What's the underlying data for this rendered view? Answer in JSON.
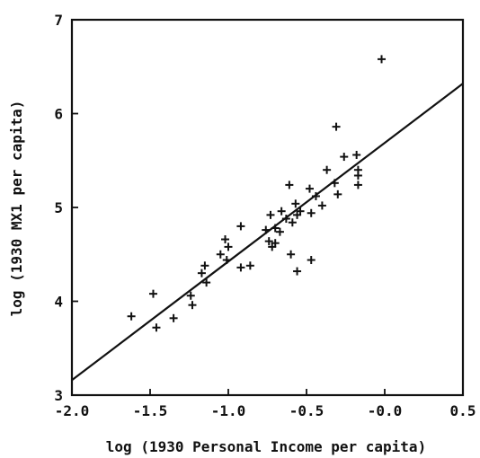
{
  "chart_data": {
    "type": "scatter",
    "xlabel": "log (1930 Personal Income per capita)",
    "ylabel": "log (1930 MX1 per capita)",
    "xlim": [
      -2.0,
      0.5
    ],
    "ylim": [
      3,
      7
    ],
    "xticks": [
      -2.0,
      -1.5,
      -1.0,
      -0.5,
      0.0,
      0.5
    ],
    "xtick_labels": [
      "-2.0",
      "-1.5",
      "-1.0",
      "-0.5",
      "-0.0",
      "0.5"
    ],
    "yticks": [
      3,
      4,
      5,
      6,
      7
    ],
    "ytick_labels": [
      "3",
      "4",
      "5",
      "6",
      "7"
    ],
    "grid": false,
    "marker": "plus",
    "fit_line": {
      "x": [
        -2.0,
        0.5
      ],
      "y": [
        3.16,
        6.32
      ]
    },
    "points": [
      {
        "x": -1.62,
        "y": 3.84
      },
      {
        "x": -1.48,
        "y": 4.08
      },
      {
        "x": -1.46,
        "y": 3.72
      },
      {
        "x": -1.35,
        "y": 3.82
      },
      {
        "x": -1.24,
        "y": 4.06
      },
      {
        "x": -1.23,
        "y": 3.96
      },
      {
        "x": -1.17,
        "y": 4.3
      },
      {
        "x": -1.15,
        "y": 4.38
      },
      {
        "x": -1.14,
        "y": 4.2
      },
      {
        "x": -1.05,
        "y": 4.5
      },
      {
        "x": -1.02,
        "y": 4.66
      },
      {
        "x": -1.0,
        "y": 4.58
      },
      {
        "x": -1.01,
        "y": 4.44
      },
      {
        "x": -0.92,
        "y": 4.8
      },
      {
        "x": -0.92,
        "y": 4.36
      },
      {
        "x": -0.86,
        "y": 4.38
      },
      {
        "x": -0.76,
        "y": 4.76
      },
      {
        "x": -0.73,
        "y": 4.92
      },
      {
        "x": -0.74,
        "y": 4.64
      },
      {
        "x": -0.72,
        "y": 4.58
      },
      {
        "x": -0.7,
        "y": 4.62
      },
      {
        "x": -0.7,
        "y": 4.78
      },
      {
        "x": -0.67,
        "y": 4.74
      },
      {
        "x": -0.66,
        "y": 4.96
      },
      {
        "x": -0.63,
        "y": 4.88
      },
      {
        "x": -0.61,
        "y": 5.24
      },
      {
        "x": -0.6,
        "y": 4.5
      },
      {
        "x": -0.59,
        "y": 4.84
      },
      {
        "x": -0.57,
        "y": 5.04
      },
      {
        "x": -0.56,
        "y": 4.92
      },
      {
        "x": -0.56,
        "y": 4.32
      },
      {
        "x": -0.54,
        "y": 4.96
      },
      {
        "x": -0.48,
        "y": 5.2
      },
      {
        "x": -0.47,
        "y": 4.44
      },
      {
        "x": -0.47,
        "y": 4.94
      },
      {
        "x": -0.44,
        "y": 5.12
      },
      {
        "x": -0.4,
        "y": 5.02
      },
      {
        "x": -0.37,
        "y": 5.4
      },
      {
        "x": -0.32,
        "y": 5.26
      },
      {
        "x": -0.31,
        "y": 5.86
      },
      {
        "x": -0.3,
        "y": 5.14
      },
      {
        "x": -0.26,
        "y": 5.54
      },
      {
        "x": -0.18,
        "y": 5.56
      },
      {
        "x": -0.17,
        "y": 5.4
      },
      {
        "x": -0.17,
        "y": 5.34
      },
      {
        "x": -0.17,
        "y": 5.24
      },
      {
        "x": -0.02,
        "y": 6.58
      }
    ]
  }
}
